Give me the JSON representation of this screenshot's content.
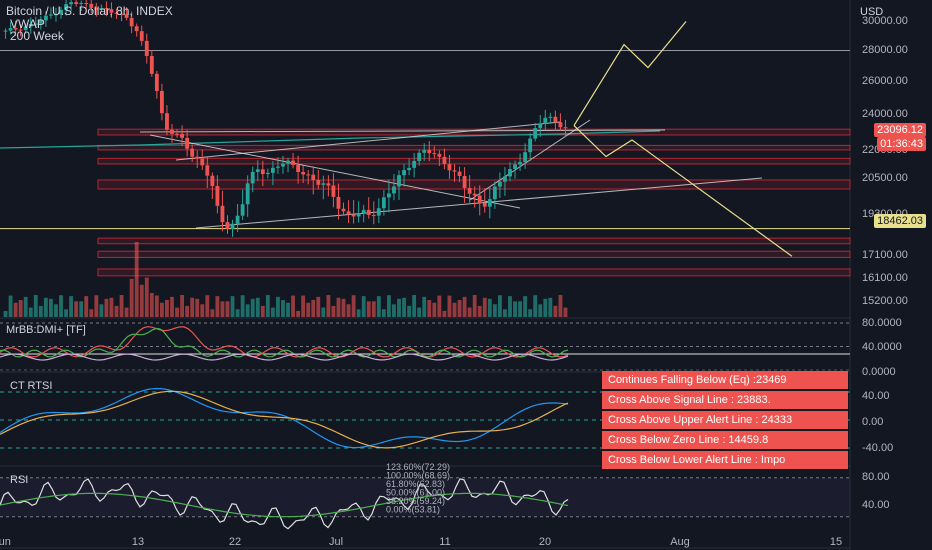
{
  "header": {
    "symbol_line": "Bitcoin / U.S. Dollar, 8h, INDEX",
    "indicator_1": "VWAP",
    "indicator_2": "200 Week"
  },
  "currency": "USD",
  "price_axis_labels": [
    "30000.00",
    "28000.00",
    "26000.00",
    "24000.00",
    "22000.00",
    "20500.00",
    "19300.00",
    "17100.00",
    "16100.00",
    "15200.00"
  ],
  "last_price": "23096.12",
  "countdown": "01:36:43",
  "level_tag": "18462.03",
  "panes": {
    "mrbb": {
      "label": "MrBB:DMI+ [TF]",
      "axis": [
        "80.0000",
        "40.0000",
        "0.0000"
      ]
    },
    "rtsi": {
      "label": "CT RTSI",
      "axis": [
        "40.00",
        "0.00",
        "-40.00"
      ]
    },
    "rsi": {
      "label": "RSI",
      "axis": [
        "80.00",
        "40.00"
      ],
      "fib_labels": [
        "123.60%(72.29)",
        "100.00%(68.69)",
        "61.80%(62.83)",
        "50.00%(61.00)",
        "38.20%(59.24)",
        "0.00%(53.81)"
      ]
    }
  },
  "alerts": [
    "Continues Falling Below (Eq) :23469",
    "Cross Above Signal Line : 23883.",
    "Cross Above Upper Alert Line : 24333",
    "Cross Below Zero Line : 14459.8",
    "Cross Below Lower Alert Line : Impo"
  ],
  "time_axis": [
    "Jun",
    "13",
    "22",
    "Jul",
    "11",
    "20",
    "Aug",
    "15"
  ],
  "colors": {
    "background": "#131722",
    "up": "#26a69a",
    "down": "#ef5350",
    "zone": "#b22833",
    "projection": "#e8e08c",
    "alert_bg": "#ef5350"
  },
  "chart_data": {
    "type": "candlestick",
    "title": "Bitcoin / U.S. Dollar, 8h, INDEX",
    "ylabel": "USD",
    "ylim": [
      14800,
      31500
    ],
    "price_path": [
      [
        0,
        29200
      ],
      [
        6,
        29700
      ],
      [
        10,
        30400
      ],
      [
        14,
        31200
      ],
      [
        18,
        31000
      ],
      [
        22,
        30600
      ],
      [
        26,
        30200
      ],
      [
        28,
        29300
      ],
      [
        30,
        27800
      ],
      [
        32,
        25800
      ],
      [
        34,
        23400
      ],
      [
        36,
        22800
      ],
      [
        38,
        22500
      ],
      [
        40,
        21600
      ],
      [
        42,
        21300
      ],
      [
        44,
        20300
      ],
      [
        46,
        19000
      ],
      [
        48,
        18400
      ],
      [
        50,
        19300
      ],
      [
        52,
        20300
      ],
      [
        54,
        20900
      ],
      [
        56,
        20700
      ],
      [
        58,
        21100
      ],
      [
        60,
        21300
      ],
      [
        62,
        21000
      ],
      [
        64,
        20700
      ],
      [
        66,
        20400
      ],
      [
        68,
        20200
      ],
      [
        70,
        20000
      ],
      [
        72,
        19400
      ],
      [
        74,
        19100
      ],
      [
        76,
        19300
      ],
      [
        78,
        19200
      ],
      [
        80,
        19500
      ],
      [
        82,
        19900
      ],
      [
        84,
        20400
      ],
      [
        86,
        21000
      ],
      [
        88,
        21600
      ],
      [
        90,
        21900
      ],
      [
        92,
        21700
      ],
      [
        94,
        21300
      ],
      [
        96,
        20800
      ],
      [
        98,
        20200
      ],
      [
        100,
        19900
      ],
      [
        102,
        19600
      ],
      [
        104,
        19800
      ],
      [
        106,
        20300
      ],
      [
        108,
        20900
      ],
      [
        110,
        21300
      ],
      [
        112,
        22200
      ],
      [
        114,
        23300
      ],
      [
        116,
        23900
      ],
      [
        118,
        23500
      ],
      [
        120,
        23100
      ]
    ],
    "projection_up": [
      [
        574,
        23300
      ],
      [
        624,
        28300
      ],
      [
        648,
        26800
      ],
      [
        686,
        29900
      ]
    ],
    "projection_down": [
      [
        574,
        23300
      ],
      [
        606,
        21600
      ],
      [
        632,
        22500
      ],
      [
        792,
        17000
      ]
    ],
    "horizontal_levels": [
      27900,
      18462.03
    ],
    "zones": [
      [
        22780,
        23100
      ],
      [
        21950,
        22200
      ],
      [
        21200,
        21500
      ],
      [
        20100,
        20400
      ],
      [
        17650,
        17950
      ],
      [
        16950,
        17250
      ],
      [
        16150,
        16450
      ]
    ],
    "mrbb": {
      "ylim": [
        0,
        85
      ],
      "levels": [
        0,
        40,
        80
      ]
    },
    "rtsi": {
      "ylim": [
        -60,
        60
      ],
      "levels": [
        -40,
        0,
        40
      ]
    },
    "rsi": {
      "ylim": [
        10,
        90
      ],
      "levels": [
        40,
        80
      ]
    }
  }
}
